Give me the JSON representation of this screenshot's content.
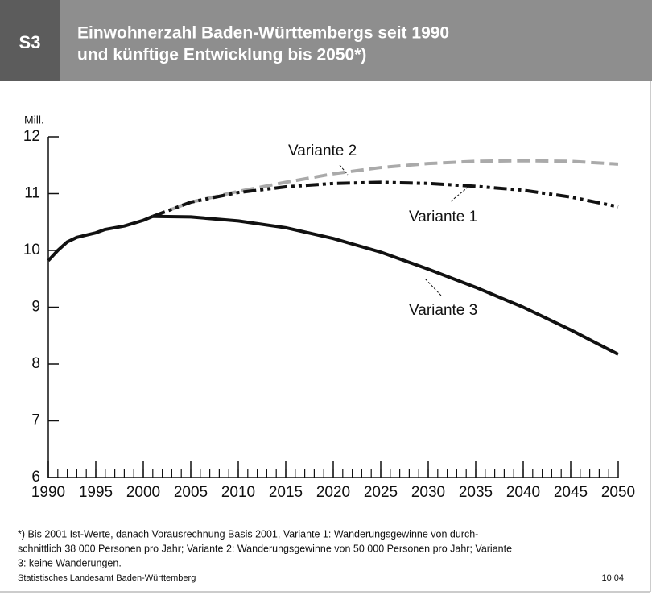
{
  "header": {
    "badge": "S3",
    "title_lines": [
      "Einwohnerzahl Baden-Württembergs seit 1990",
      "und künftige Entwicklung bis 2050*)"
    ]
  },
  "chart_data": {
    "type": "line",
    "y_unit": "Mill.",
    "x": [
      1990,
      1991,
      1992,
      1993,
      1994,
      1995,
      1996,
      1997,
      1998,
      1999,
      2000,
      2001,
      2005,
      2010,
      2015,
      2020,
      2025,
      2030,
      2035,
      2040,
      2045,
      2050
    ],
    "series": [
      {
        "color": "#111111",
        "line_style": "solid",
        "values": [
          9.82,
          10.0,
          10.15,
          10.23,
          10.27,
          10.31,
          10.37,
          10.4,
          10.43,
          10.48,
          10.53,
          10.6,
          null,
          null,
          null,
          null,
          null,
          null,
          null,
          null,
          null,
          null
        ]
      },
      {
        "name": "Variante 2",
        "color": "#aaaaaa",
        "line_style": "dashed",
        "values": [
          null,
          null,
          null,
          null,
          null,
          null,
          null,
          null,
          null,
          null,
          null,
          10.6,
          10.85,
          11.04,
          11.2,
          11.35,
          11.46,
          11.53,
          11.57,
          11.58,
          11.57,
          11.52
        ]
      },
      {
        "name": "Variante 1",
        "color": "#111111",
        "line_style": "dashdotdot",
        "values": [
          null,
          null,
          null,
          null,
          null,
          null,
          null,
          null,
          null,
          null,
          null,
          10.6,
          10.85,
          11.02,
          11.12,
          11.18,
          11.2,
          11.18,
          11.13,
          11.06,
          10.94,
          10.77
        ]
      },
      {
        "name": "Variante 3",
        "color": "#111111",
        "line_style": "solid",
        "values": [
          null,
          null,
          null,
          null,
          null,
          null,
          null,
          null,
          null,
          null,
          null,
          10.6,
          10.59,
          10.52,
          10.4,
          10.21,
          9.97,
          9.67,
          9.35,
          9.0,
          8.6,
          8.17
        ]
      }
    ],
    "xlim": [
      1990,
      2050
    ],
    "xticks": [
      1990,
      1995,
      2000,
      2005,
      2010,
      2015,
      2020,
      2025,
      2030,
      2035,
      2040,
      2045,
      2050
    ],
    "ylim": [
      6,
      12
    ],
    "yticks": [
      6,
      7,
      8,
      9,
      10,
      11,
      12
    ],
    "grid": false
  },
  "footnote_lines": [
    "*) Bis 2001 Ist-Werte, danach Vorausrechnung Basis 2001, Variante 1: Wanderungsgewinne von durch-",
    "schnittlich 38 000 Personen pro Jahr; Variante 2: Wanderungsgewinne von 50 000 Personen pro Jahr; Variante",
    "3: keine Wanderungen."
  ],
  "footer": {
    "source": "Statistisches Landesamt Baden-Württemberg",
    "code": "10 04"
  }
}
